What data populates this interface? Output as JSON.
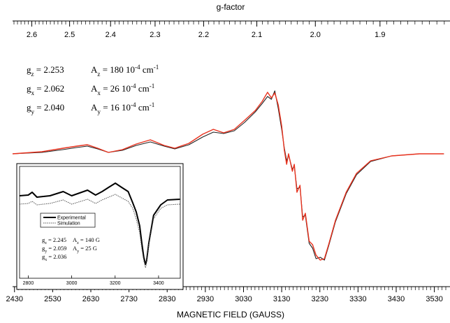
{
  "chart_data": [
    {
      "type": "line",
      "x_label": "MAGNETIC FIELD (GAUSS)",
      "x2_label": "g-factor",
      "xlim": [
        2425,
        3560
      ],
      "xticks": [
        2430,
        2530,
        2630,
        2730,
        2830,
        2930,
        3030,
        3130,
        3230,
        3330,
        3430,
        3530
      ],
      "x2lim": [
        2.654,
        1.808
      ],
      "x2scale": "reciprocal",
      "x2ticks": [
        2.6,
        2.5,
        2.4,
        2.3,
        2.2,
        2.1,
        {
          "value": 2,
          "label": "2.0"
        },
        1.9
      ],
      "minor_ticks_between": 9,
      "ylim": [
        -180,
        160
      ],
      "x": [
        2425,
        2502,
        2557,
        2593,
        2621,
        2648,
        2676,
        2713,
        2749,
        2786,
        2822,
        2850,
        2887,
        2923,
        2951,
        2978,
        3006,
        3033,
        3061,
        3079,
        3093,
        3103,
        3112,
        3121,
        3130,
        3137,
        3143,
        3148,
        3158,
        3163,
        3170,
        3178,
        3185,
        3192,
        3202,
        3211,
        3220,
        3231,
        3242,
        3253,
        3271,
        3299,
        3326,
        3363,
        3418,
        3491,
        3555
      ],
      "series": [
        {
          "color": "#222222",
          "values": [
            0,
            2,
            6,
            9,
            11,
            7,
            2,
            5,
            12,
            17,
            11,
            7,
            13,
            24,
            31,
            29,
            33,
            45,
            60,
            72,
            82,
            78,
            90,
            65,
            35,
            8,
            -10,
            -2,
            -22,
            -18,
            -50,
            -48,
            -90,
            -88,
            -128,
            -135,
            -150,
            -148,
            -152,
            -132,
            -97,
            -57,
            -30,
            -11,
            -3,
            0,
            0
          ]
        },
        {
          "color": "#e8321e",
          "values": [
            0,
            3,
            8,
            11,
            13,
            8,
            2,
            6,
            14,
            20,
            12,
            8,
            15,
            28,
            35,
            30,
            35,
            48,
            62,
            75,
            88,
            80,
            87,
            70,
            40,
            5,
            -15,
            0,
            -25,
            -15,
            -55,
            -45,
            -95,
            -85,
            -125,
            -130,
            -145,
            -152,
            -150,
            -130,
            -95,
            -55,
            -28,
            -10,
            -3,
            0,
            0
          ]
        }
      ],
      "annotations": [
        {
          "left": [
            {
              "text": "g"
            },
            {
              "text": "z",
              "sub": true
            },
            {
              "text": " = 2.253"
            }
          ],
          "right": [
            {
              "text": "A"
            },
            {
              "text": "z",
              "sub": true
            },
            {
              "text": " = 180 10"
            },
            {
              "text": "-4",
              "sup": true
            },
            {
              "text": " cm"
            },
            {
              "text": "-1",
              "sup": true
            }
          ]
        },
        {
          "left": [
            {
              "text": "g"
            },
            {
              "text": "x",
              "sub": true
            },
            {
              "text": " = 2.062"
            }
          ],
          "right": [
            {
              "text": "A"
            },
            {
              "text": "x",
              "sub": true
            },
            {
              "text": " = 26 10"
            },
            {
              "text": "-4",
              "sup": true
            },
            {
              "text": " cm"
            },
            {
              "text": "-1",
              "sup": true
            }
          ]
        },
        {
          "left": [
            {
              "text": "g"
            },
            {
              "text": "y",
              "sub": true
            },
            {
              "text": " = 2.040"
            }
          ],
          "right": [
            {
              "text": "A"
            },
            {
              "text": "y",
              "sub": true
            },
            {
              "text": " = 16 10"
            },
            {
              "text": "-4",
              "sup": true
            },
            {
              "text": " cm"
            },
            {
              "text": "-1",
              "sup": true
            }
          ]
        }
      ]
    },
    {
      "type": "line",
      "xlim": [
        2760,
        3500
      ],
      "xticks": [
        2800,
        3000,
        3200,
        3400
      ],
      "ylim": [
        -110,
        50
      ],
      "x": [
        2760,
        2800,
        2818,
        2840,
        2900,
        2961,
        3000,
        3073,
        3110,
        3140,
        3170,
        3201,
        3230,
        3260,
        3281,
        3297,
        3313,
        3323,
        3332,
        3340,
        3345,
        3355,
        3377,
        3410,
        3441,
        3498
      ],
      "series": [
        {
          "name": "Experimental",
          "color": "#000000",
          "dash": false,
          "values": [
            8,
            9,
            13,
            6,
            8,
            14,
            8,
            16,
            9,
            14,
            20,
            26,
            20,
            14,
            -2,
            -15,
            -35,
            -60,
            -80,
            -90,
            -85,
            -60,
            -20,
            -5,
            2,
            3
          ]
        },
        {
          "name": "Simulation",
          "color": "#555555",
          "dash": true,
          "values": [
            -4,
            -3,
            0,
            -5,
            -3,
            2,
            -4,
            3,
            -3,
            2,
            6,
            10,
            5,
            0,
            -10,
            -25,
            -45,
            -68,
            -85,
            -95,
            -88,
            -62,
            -25,
            -10,
            -5,
            -4
          ]
        }
      ],
      "annotations": [
        {
          "left": [
            {
              "text": "g"
            },
            {
              "text": "z",
              "sub": true
            },
            {
              "text": " = 2.245"
            }
          ],
          "right": [
            {
              "text": "A"
            },
            {
              "text": "z",
              "sub": true
            },
            {
              "text": " = 140 G"
            }
          ]
        },
        {
          "left": [
            {
              "text": "g"
            },
            {
              "text": "y",
              "sub": true
            },
            {
              "text": " = 2.059"
            }
          ],
          "right": [
            {
              "text": "A"
            },
            {
              "text": "y",
              "sub": true
            },
            {
              "text": " = 25 G"
            }
          ]
        },
        {
          "left": [
            {
              "text": "g"
            },
            {
              "text": "x",
              "sub": true
            },
            {
              "text": " = 2.036"
            }
          ],
          "right": []
        }
      ]
    }
  ]
}
